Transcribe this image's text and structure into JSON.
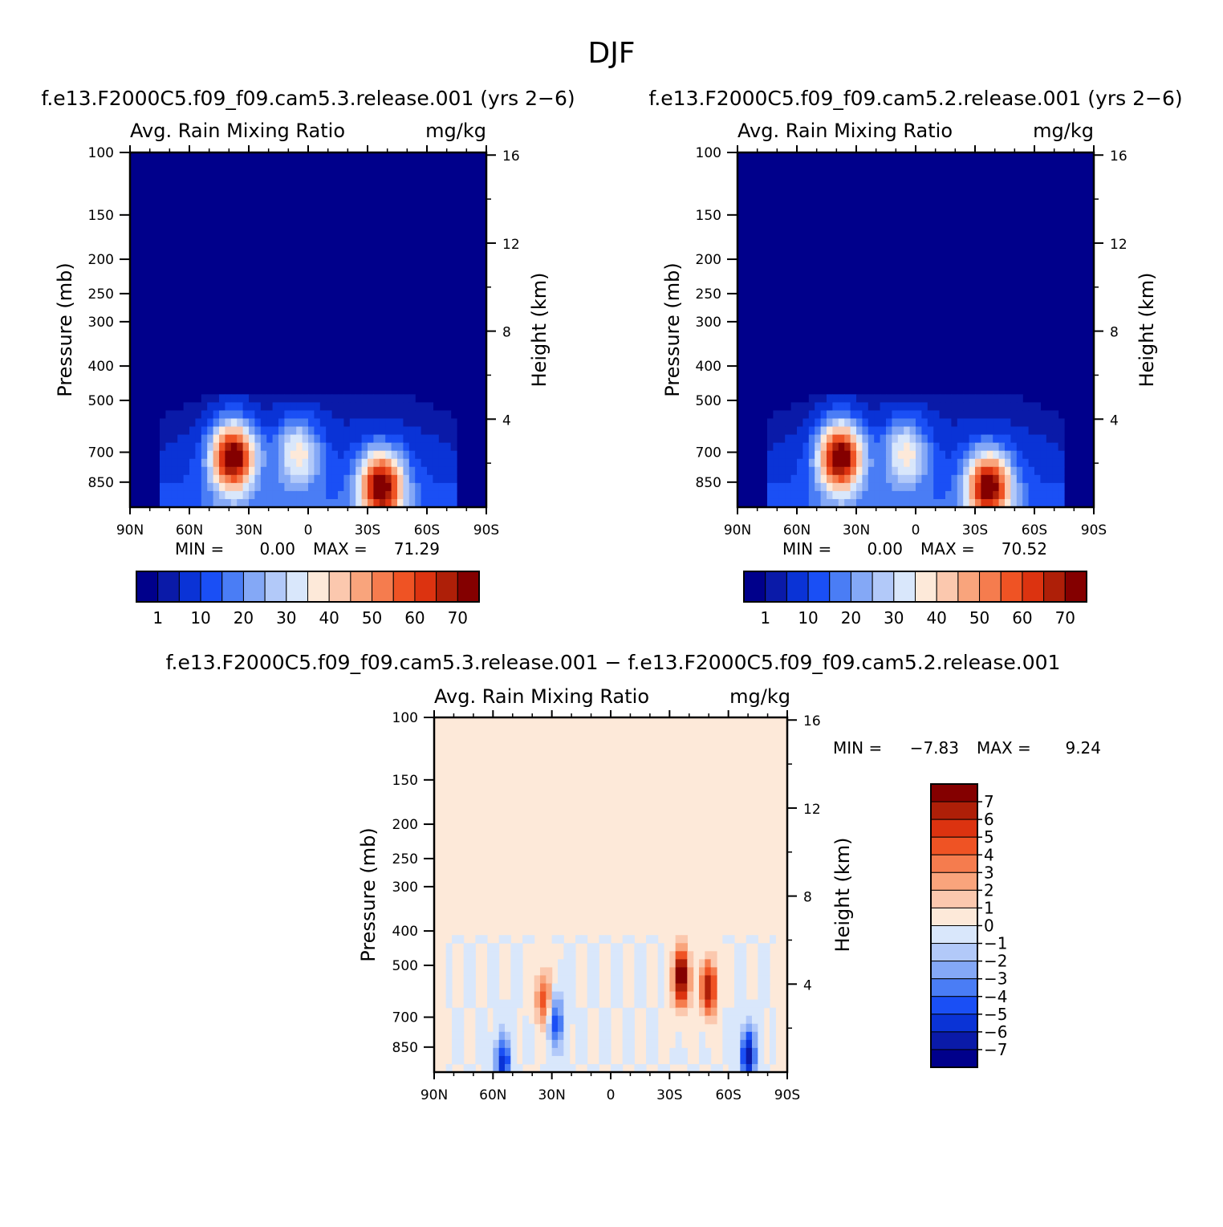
{
  "figure": {
    "title": "DJF",
    "colors": {
      "seq": [
        "#00008b",
        "#0a1aa8",
        "#0a33d6",
        "#1a4ff5",
        "#4a7df5",
        "#84a8f6",
        "#b2c9f9",
        "#d9e7fb",
        "#fde9d9",
        "#fbc8ae",
        "#f9a47c",
        "#f57c4e",
        "#ef5324",
        "#dc3310",
        "#ae1f08",
        "#840000"
      ],
      "diff": [
        "#00008b",
        "#0a1aa8",
        "#0a33d6",
        "#1a4ff5",
        "#4a7df5",
        "#84a8f6",
        "#b2c9f9",
        "#d9e7fb",
        "#fde9d9",
        "#fbc8ae",
        "#f9a47c",
        "#f57c4e",
        "#ef5324",
        "#dc3310",
        "#ae1f08",
        "#840000"
      ]
    }
  },
  "panels": [
    {
      "run_label": "f.e13.F2000C5.f09_f09.cam5.3.release.001  (yrs 2−6)",
      "left_title": "Avg. Rain Mixing Ratio",
      "right_title": "mg/kg",
      "ylabel": "Pressure (mb)",
      "y2label": "Height (km)",
      "min_label": "MIN =",
      "min_value": "0.00",
      "max_label": "MAX =",
      "max_value": "71.29"
    },
    {
      "run_label": "f.e13.F2000C5.f09_f09.cam5.2.release.001  (yrs 2−6)",
      "left_title": "Avg. Rain Mixing Ratio",
      "right_title": "mg/kg",
      "ylabel": "Pressure (mb)",
      "y2label": "Height (km)",
      "min_label": "MIN =",
      "min_value": "0.00",
      "max_label": "MAX =",
      "max_value": "70.52"
    },
    {
      "run_label": "f.e13.F2000C5.f09_f09.cam5.3.release.001  −  f.e13.F2000C5.f09_f09.cam5.2.release.001",
      "left_title": "Avg. Rain Mixing Ratio",
      "right_title": "mg/kg",
      "ylabel": "Pressure (mb)",
      "y2label": "Height (km)",
      "min_label": "MIN =",
      "min_value": "−7.83",
      "max_label": "MAX =",
      "max_value": "9.24"
    }
  ],
  "chart_data": [
    {
      "type": "heatmap",
      "title": "Avg. Rain Mixing Ratio",
      "units": "mg/kg",
      "xlabel": "",
      "ylabel": "Pressure (mb)",
      "y2label": "Height (km)",
      "x_ticks": [
        "90N",
        "60N",
        "30N",
        "0",
        "30S",
        "60S",
        "90S"
      ],
      "x_tick_values": [
        90,
        60,
        30,
        0,
        -30,
        -60,
        -90
      ],
      "y_ticks": [
        100,
        150,
        200,
        250,
        300,
        400,
        500,
        700,
        850
      ],
      "y_scale": "log",
      "ylim": [
        100,
        1000
      ],
      "y2_ticks": [
        16,
        12,
        8,
        4
      ],
      "min": 0.0,
      "max": 71.29,
      "levels": [
        1,
        5,
        10,
        15,
        20,
        25,
        30,
        35,
        40,
        45,
        50,
        55,
        60,
        65,
        70
      ],
      "colorbar_labels": [
        "1",
        "10",
        "20",
        "30",
        "40",
        "50",
        "60",
        "70"
      ],
      "features": [
        {
          "lat": 38,
          "pressure": 720,
          "value": 71
        },
        {
          "lat": -37,
          "pressure": 870,
          "value": 66
        },
        {
          "lat": 5,
          "pressure": 700,
          "value": 30
        }
      ]
    },
    {
      "type": "heatmap",
      "title": "Avg. Rain Mixing Ratio",
      "units": "mg/kg",
      "xlabel": "",
      "ylabel": "Pressure (mb)",
      "y2label": "Height (km)",
      "x_ticks": [
        "90N",
        "60N",
        "30N",
        "0",
        "30S",
        "60S",
        "90S"
      ],
      "x_tick_values": [
        90,
        60,
        30,
        0,
        -30,
        -60,
        -90
      ],
      "y_ticks": [
        100,
        150,
        200,
        250,
        300,
        400,
        500,
        700,
        850
      ],
      "y_scale": "log",
      "ylim": [
        100,
        1000
      ],
      "y2_ticks": [
        16,
        12,
        8,
        4
      ],
      "min": 0.0,
      "max": 70.52,
      "levels": [
        1,
        5,
        10,
        15,
        20,
        25,
        30,
        35,
        40,
        45,
        50,
        55,
        60,
        65,
        70
      ],
      "colorbar_labels": [
        "1",
        "10",
        "20",
        "30",
        "40",
        "50",
        "60",
        "70"
      ],
      "features": [
        {
          "lat": 38,
          "pressure": 720,
          "value": 70
        },
        {
          "lat": -37,
          "pressure": 870,
          "value": 65
        },
        {
          "lat": 5,
          "pressure": 700,
          "value": 30
        }
      ]
    },
    {
      "type": "heatmap",
      "title": "Avg. Rain Mixing Ratio",
      "units": "mg/kg",
      "xlabel": "",
      "ylabel": "Pressure (mb)",
      "y2label": "Height (km)",
      "x_ticks": [
        "90N",
        "60N",
        "30N",
        "0",
        "30S",
        "60S",
        "90S"
      ],
      "x_tick_values": [
        90,
        60,
        30,
        0,
        -30,
        -60,
        -90
      ],
      "y_ticks": [
        100,
        150,
        200,
        250,
        300,
        400,
        500,
        700,
        850
      ],
      "y_scale": "log",
      "ylim": [
        100,
        1000
      ],
      "y2_ticks": [
        16,
        12,
        8,
        4
      ],
      "min": -7.83,
      "max": 9.24,
      "levels": [
        -7,
        -6,
        -5,
        -4,
        -3,
        -2,
        -1,
        0,
        1,
        2,
        3,
        4,
        5,
        6,
        7
      ],
      "colorbar_labels": [
        "7",
        "6",
        "5",
        "4",
        "3",
        "2",
        "1",
        "0",
        "−1",
        "−2",
        "−3",
        "−4",
        "−5",
        "−6",
        "−7"
      ],
      "features": [
        {
          "lat": -36,
          "pressure": 540,
          "value": 9
        },
        {
          "lat": -50,
          "pressure": 580,
          "value": 7
        },
        {
          "lat": -70,
          "pressure": 900,
          "value": -7
        },
        {
          "lat": 28,
          "pressure": 720,
          "value": -5
        },
        {
          "lat": 34,
          "pressure": 620,
          "value": 5
        },
        {
          "lat": 55,
          "pressure": 950,
          "value": -6
        }
      ]
    }
  ]
}
